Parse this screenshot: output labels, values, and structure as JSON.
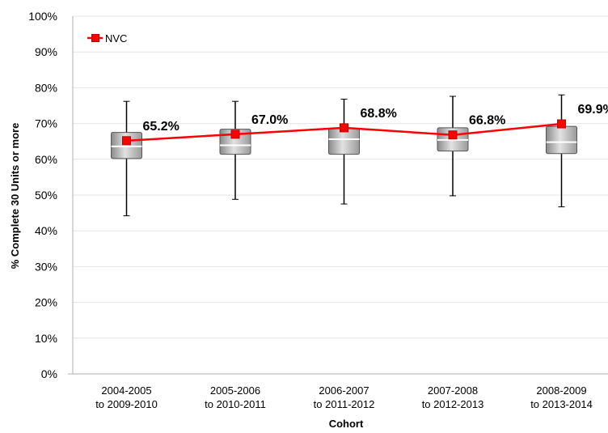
{
  "chart_data": {
    "type": "box",
    "title": "",
    "xlabel": "Cohort",
    "ylabel": "% Complete 30 Units or more",
    "ylim": [
      0,
      100
    ],
    "y_ticks": [
      "0%",
      "10%",
      "20%",
      "30%",
      "40%",
      "50%",
      "60%",
      "70%",
      "80%",
      "90%",
      "100%"
    ],
    "categories": [
      [
        "2004-2005",
        "to 2009-2010"
      ],
      [
        "2005-2006",
        "to 2010-2011"
      ],
      [
        "2006-2007",
        "to 2011-2012"
      ],
      [
        "2007-2008",
        "to 2012-2013"
      ],
      [
        "2008-2009",
        "to 2013-2014"
      ]
    ],
    "box_series": [
      {
        "min": 44.2,
        "q1": 60.2,
        "median": 63.6,
        "q3": 67.5,
        "max": 76.2
      },
      {
        "min": 48.8,
        "q1": 61.4,
        "median": 63.9,
        "q3": 68.4,
        "max": 76.2
      },
      {
        "min": 47.5,
        "q1": 61.4,
        "median": 65.6,
        "q3": 68.6,
        "max": 76.8
      },
      {
        "min": 49.8,
        "q1": 62.3,
        "median": 65.4,
        "q3": 68.8,
        "max": 77.6
      },
      {
        "min": 46.7,
        "q1": 61.6,
        "median": 64.8,
        "q3": 69.2,
        "max": 78.0
      }
    ],
    "series": [
      {
        "name": "NVC",
        "values": [
          65.2,
          67.0,
          68.8,
          66.8,
          69.9
        ],
        "color": "#ff0000"
      }
    ],
    "data_labels": [
      "65.2%",
      "67.0%",
      "68.8%",
      "66.8%",
      "69.9%"
    ],
    "legend": {
      "position": "top-left",
      "entries": [
        "NVC"
      ]
    },
    "grid": true
  }
}
